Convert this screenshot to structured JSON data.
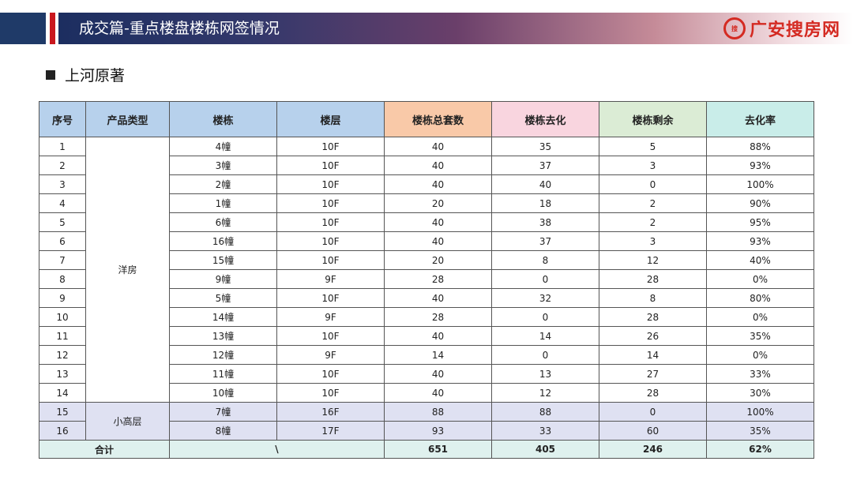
{
  "header": {
    "title": "成交篇-重点楼盘楼栋网签情况",
    "logo_mark": "搜",
    "logo_text": "广安搜房网"
  },
  "subtitle": "上河原著",
  "table": {
    "columns": [
      "序号",
      "产品类型",
      "楼栋",
      "楼层",
      "楼栋总套数",
      "楼栋去化",
      "楼栋剩余",
      "去化率"
    ],
    "groups": [
      "洋房",
      "小高层"
    ],
    "rows": [
      [
        "1",
        "4幢",
        "10F",
        "40",
        "35",
        "5",
        "88%"
      ],
      [
        "2",
        "3幢",
        "10F",
        "40",
        "37",
        "3",
        "93%"
      ],
      [
        "3",
        "2幢",
        "10F",
        "40",
        "40",
        "0",
        "100%"
      ],
      [
        "4",
        "1幢",
        "10F",
        "20",
        "18",
        "2",
        "90%"
      ],
      [
        "5",
        "6幢",
        "10F",
        "40",
        "38",
        "2",
        "95%"
      ],
      [
        "6",
        "16幢",
        "10F",
        "40",
        "37",
        "3",
        "93%"
      ],
      [
        "7",
        "15幢",
        "10F",
        "20",
        "8",
        "12",
        "40%"
      ],
      [
        "8",
        "9幢",
        "9F",
        "28",
        "0",
        "28",
        "0%"
      ],
      [
        "9",
        "5幢",
        "10F",
        "40",
        "32",
        "8",
        "80%"
      ],
      [
        "10",
        "14幢",
        "9F",
        "28",
        "0",
        "28",
        "0%"
      ],
      [
        "11",
        "13幢",
        "10F",
        "40",
        "14",
        "26",
        "35%"
      ],
      [
        "12",
        "12幢",
        "9F",
        "14",
        "0",
        "14",
        "0%"
      ],
      [
        "13",
        "11幢",
        "10F",
        "40",
        "13",
        "27",
        "33%"
      ],
      [
        "14",
        "10幢",
        "10F",
        "40",
        "12",
        "28",
        "30%"
      ],
      [
        "15",
        "7幢",
        "16F",
        "88",
        "88",
        "0",
        "100%"
      ],
      [
        "16",
        "8幢",
        "17F",
        "93",
        "33",
        "60",
        "35%"
      ]
    ],
    "total": {
      "label": "合计",
      "blank": "\\",
      "units": "651",
      "sold": "405",
      "remaining": "246",
      "rate": "62%"
    }
  }
}
